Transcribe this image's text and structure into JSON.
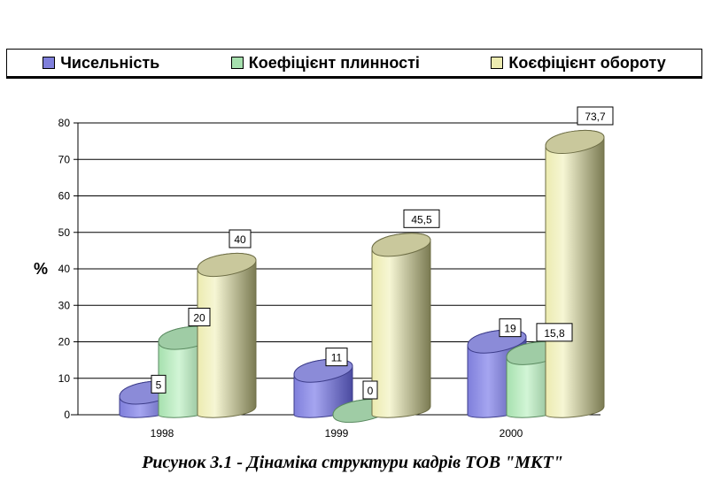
{
  "caption": "Рисунок 3.1 - Дінаміка структури кадрів ТОВ \"МКТ\"",
  "colors": {
    "chyselnist": "#7f7fdb",
    "plynnist": "#a6e0ae",
    "oborot": "#ecebb0"
  },
  "chart_data": {
    "type": "bar",
    "title": "",
    "xlabel": "",
    "ylabel": "%",
    "ylim": [
      0,
      80
    ],
    "yticks": [
      0,
      10,
      20,
      30,
      40,
      50,
      60,
      70,
      80
    ],
    "categories": [
      "1998",
      "1999",
      "2000"
    ],
    "legend_position": "top",
    "grid": true,
    "series": [
      {
        "name": "Чисельність",
        "values": [
          5,
          11,
          19
        ],
        "labels": [
          "5",
          "11",
          "19"
        ]
      },
      {
        "name": "Коефіцієнт плинності",
        "values": [
          20,
          0,
          15.8
        ],
        "labels": [
          "20",
          "0",
          "15,8"
        ]
      },
      {
        "name": "Коєфіцієнт обороту",
        "values": [
          40,
          45.5,
          73.7
        ],
        "labels": [
          "40",
          "45,5",
          "73,7"
        ]
      }
    ]
  }
}
